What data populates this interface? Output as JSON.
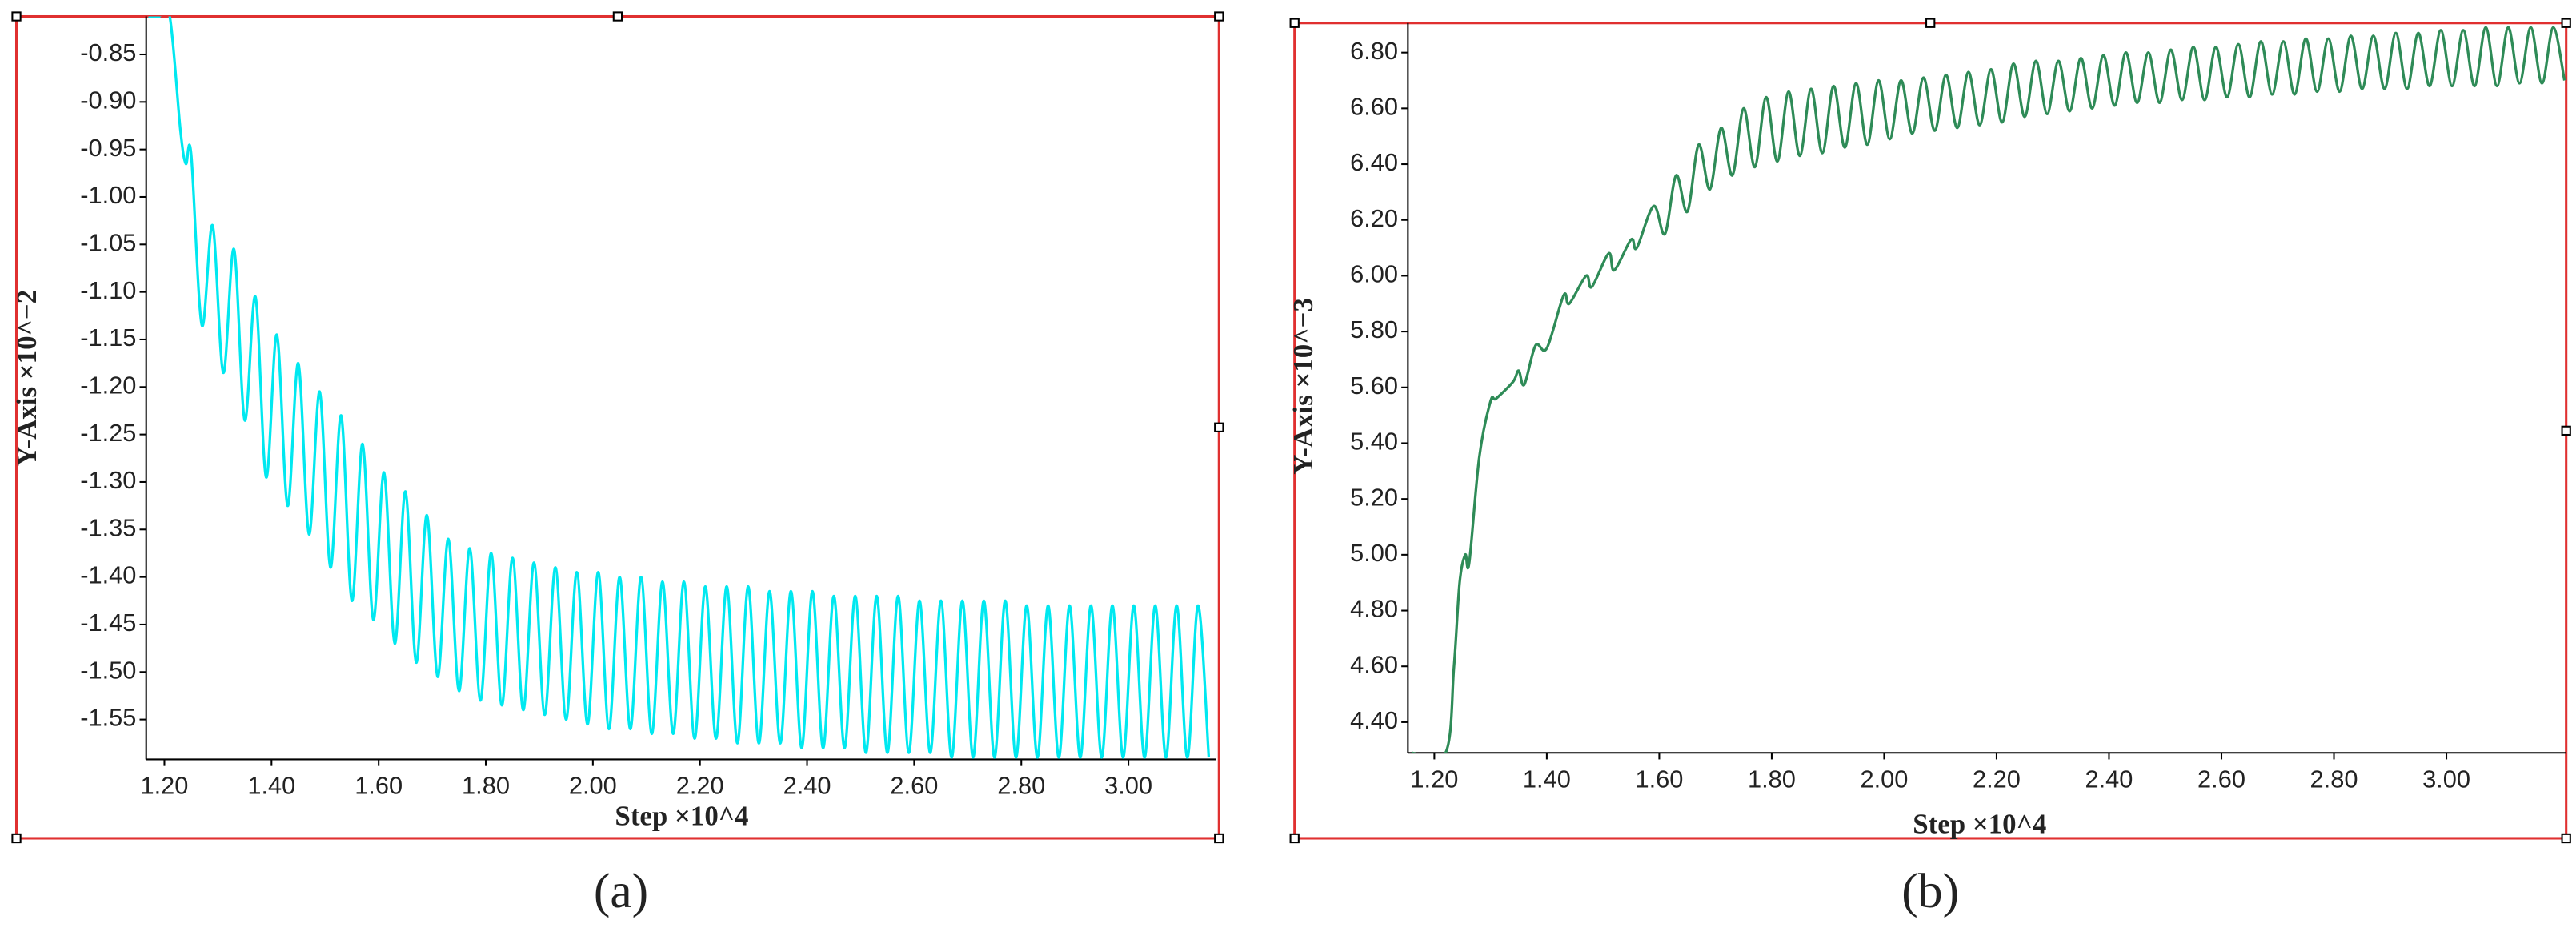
{
  "chart_data": [
    {
      "type": "line",
      "caption": "(a)",
      "x_label": "Step ×10^4",
      "y_label": "Y-Axis ×10^−2",
      "color": "#00e8f0",
      "xlim": [
        1.166,
        3.163
      ],
      "ylim": [
        -1.592,
        -0.81
      ],
      "xticks": [
        {
          "value": 1.2,
          "label": "1.20"
        },
        {
          "value": 1.4,
          "label": "1.40"
        },
        {
          "value": 1.6,
          "label": "1.60"
        },
        {
          "value": 1.8,
          "label": "1.80"
        },
        {
          "value": 2.0,
          "label": "2.00"
        },
        {
          "value": 2.2,
          "label": "2.20"
        },
        {
          "value": 2.4,
          "label": "2.40"
        },
        {
          "value": 2.6,
          "label": "2.60"
        },
        {
          "value": 2.8,
          "label": "2.80"
        },
        {
          "value": 3.0,
          "label": "3.00"
        }
      ],
      "yticks": [
        -0.85,
        {
          "value": -0.9,
          "label": "-0.90"
        },
        -0.95,
        {
          "value": -1.0,
          "label": "-1.00"
        },
        -1.05,
        {
          "value": -1.1,
          "label": "-1.10"
        },
        -1.15,
        {
          "value": -1.2,
          "label": "-1.20"
        },
        -1.25,
        {
          "value": -1.3,
          "label": "-1.30"
        },
        -1.35,
        {
          "value": -1.4,
          "label": "-1.40"
        },
        -1.45,
        {
          "value": -1.5,
          "label": "-1.50"
        },
        -1.55
      ],
      "x": [
        1.17,
        1.19,
        1.21,
        1.23,
        1.24,
        1.25,
        1.27,
        1.29,
        1.31,
        1.33,
        1.35,
        1.37,
        1.39,
        1.41,
        1.43,
        1.45,
        1.47,
        1.49,
        1.51,
        1.53,
        1.55,
        1.57,
        1.59,
        1.61,
        1.63,
        1.65,
        1.67,
        1.69,
        1.71,
        1.73,
        1.75,
        1.77,
        1.79,
        1.81,
        1.83,
        1.85,
        1.87,
        1.89,
        1.91,
        1.93,
        1.95,
        1.97,
        1.99,
        2.01,
        2.03,
        2.05,
        2.07,
        2.09,
        2.11,
        2.13,
        2.15,
        2.17,
        2.19,
        2.21,
        2.23,
        2.25,
        2.27,
        2.29,
        2.31,
        2.33,
        2.35,
        2.37,
        2.39,
        2.41,
        2.43,
        2.45,
        2.47,
        2.49,
        2.51,
        2.53,
        2.55,
        2.57,
        2.59,
        2.61,
        2.63,
        2.65,
        2.67,
        2.69,
        2.71,
        2.73,
        2.75,
        2.77,
        2.79,
        2.81,
        2.83,
        2.85,
        2.87,
        2.89,
        2.91,
        2.93,
        2.95,
        2.97,
        2.99,
        3.01,
        3.03,
        3.05,
        3.07,
        3.09,
        3.11,
        3.13,
        3.15
      ],
      "values": [
        -0.81,
        -0.81,
        -0.81,
        -0.93,
        -0.965,
        -0.955,
        -1.135,
        -1.03,
        -1.185,
        -1.055,
        -1.235,
        -1.105,
        -1.295,
        -1.145,
        -1.325,
        -1.175,
        -1.355,
        -1.205,
        -1.39,
        -1.23,
        -1.425,
        -1.26,
        -1.445,
        -1.29,
        -1.47,
        -1.31,
        -1.49,
        -1.335,
        -1.505,
        -1.36,
        -1.52,
        -1.37,
        -1.53,
        -1.375,
        -1.535,
        -1.38,
        -1.54,
        -1.385,
        -1.545,
        -1.39,
        -1.55,
        -1.395,
        -1.555,
        -1.395,
        -1.56,
        -1.4,
        -1.56,
        -1.4,
        -1.565,
        -1.405,
        -1.565,
        -1.405,
        -1.57,
        -1.41,
        -1.57,
        -1.41,
        -1.575,
        -1.41,
        -1.575,
        -1.415,
        -1.575,
        -1.415,
        -1.58,
        -1.415,
        -1.58,
        -1.42,
        -1.58,
        -1.42,
        -1.585,
        -1.42,
        -1.585,
        -1.42,
        -1.585,
        -1.425,
        -1.585,
        -1.425,
        -1.59,
        -1.425,
        -1.59,
        -1.425,
        -1.59,
        -1.425,
        -1.59,
        -1.43,
        -1.59,
        -1.43,
        -1.59,
        -1.43,
        -1.59,
        -1.43,
        -1.59,
        -1.43,
        -1.59,
        -1.43,
        -1.59,
        -1.43,
        -1.59,
        -1.43,
        -1.59,
        -1.43,
        -1.59
      ]
    },
    {
      "type": "line",
      "caption": "(b)",
      "x_label": "Step ×10^4",
      "y_label": "Y-Axis ×10^−3",
      "color": "#2e8b57",
      "xlim": [
        1.153,
        3.213
      ],
      "ylim": [
        4.29,
        6.906
      ],
      "xticks": [
        {
          "value": 1.2,
          "label": "1.20"
        },
        {
          "value": 1.4,
          "label": "1.40"
        },
        {
          "value": 1.6,
          "label": "1.60"
        },
        {
          "value": 1.8,
          "label": "1.80"
        },
        {
          "value": 2.0,
          "label": "2.00"
        },
        {
          "value": 2.2,
          "label": "2.20"
        },
        {
          "value": 2.4,
          "label": "2.40"
        },
        {
          "value": 2.6,
          "label": "2.60"
        },
        {
          "value": 2.8,
          "label": "2.80"
        },
        {
          "value": 3.0,
          "label": "3.00"
        }
      ],
      "yticks": [
        {
          "value": 4.4,
          "label": "4.40"
        },
        {
          "value": 4.6,
          "label": "4.60"
        },
        {
          "value": 4.8,
          "label": "4.80"
        },
        {
          "value": 5.0,
          "label": "5.00"
        },
        {
          "value": 5.2,
          "label": "5.20"
        },
        {
          "value": 5.4,
          "label": "5.40"
        },
        {
          "value": 5.6,
          "label": "5.60"
        },
        {
          "value": 5.8,
          "label": "5.80"
        },
        {
          "value": 6.0,
          "label": "6.00"
        },
        {
          "value": 6.2,
          "label": "6.20"
        },
        {
          "value": 6.4,
          "label": "6.40"
        },
        {
          "value": 6.6,
          "label": "6.60"
        },
        {
          "value": 6.8,
          "label": "6.80"
        }
      ],
      "x": [
        1.16,
        1.22,
        1.235,
        1.245,
        1.255,
        1.262,
        1.28,
        1.3,
        1.31,
        1.34,
        1.35,
        1.36,
        1.38,
        1.4,
        1.43,
        1.44,
        1.47,
        1.48,
        1.51,
        1.52,
        1.55,
        1.56,
        1.59,
        1.61,
        1.63,
        1.65,
        1.67,
        1.69,
        1.71,
        1.73,
        1.75,
        1.77,
        1.79,
        1.81,
        1.83,
        1.85,
        1.87,
        1.89,
        1.91,
        1.93,
        1.95,
        1.97,
        1.99,
        2.01,
        2.03,
        2.05,
        2.07,
        2.09,
        2.11,
        2.13,
        2.15,
        2.17,
        2.19,
        2.21,
        2.23,
        2.25,
        2.27,
        2.29,
        2.31,
        2.33,
        2.35,
        2.37,
        2.39,
        2.41,
        2.43,
        2.45,
        2.47,
        2.49,
        2.51,
        2.53,
        2.55,
        2.57,
        2.59,
        2.61,
        2.63,
        2.65,
        2.67,
        2.69,
        2.71,
        2.73,
        2.75,
        2.77,
        2.79,
        2.81,
        2.83,
        2.85,
        2.87,
        2.89,
        2.91,
        2.93,
        2.95,
        2.97,
        2.99,
        3.01,
        3.03,
        3.05,
        3.07,
        3.09,
        3.11,
        3.13,
        3.15,
        3.17,
        3.19,
        3.21
      ],
      "values": [
        4.29,
        4.29,
        4.6,
        4.9,
        5.0,
        4.97,
        5.35,
        5.55,
        5.56,
        5.62,
        5.66,
        5.61,
        5.75,
        5.74,
        5.93,
        5.9,
        6.0,
        5.96,
        6.08,
        6.02,
        6.13,
        6.1,
        6.25,
        6.15,
        6.36,
        6.23,
        6.47,
        6.31,
        6.53,
        6.36,
        6.6,
        6.39,
        6.64,
        6.41,
        6.66,
        6.43,
        6.67,
        6.44,
        6.68,
        6.46,
        6.69,
        6.47,
        6.7,
        6.49,
        6.7,
        6.51,
        6.71,
        6.52,
        6.72,
        6.53,
        6.73,
        6.54,
        6.74,
        6.55,
        6.76,
        6.57,
        6.77,
        6.58,
        6.77,
        6.59,
        6.78,
        6.6,
        6.79,
        6.61,
        6.8,
        6.62,
        6.8,
        6.62,
        6.81,
        6.63,
        6.82,
        6.63,
        6.82,
        6.64,
        6.83,
        6.64,
        6.84,
        6.65,
        6.84,
        6.65,
        6.85,
        6.66,
        6.85,
        6.66,
        6.86,
        6.67,
        6.86,
        6.67,
        6.87,
        6.67,
        6.87,
        6.68,
        6.88,
        6.68,
        6.88,
        6.68,
        6.89,
        6.68,
        6.89,
        6.69,
        6.89,
        6.69,
        6.89,
        6.7
      ]
    }
  ]
}
